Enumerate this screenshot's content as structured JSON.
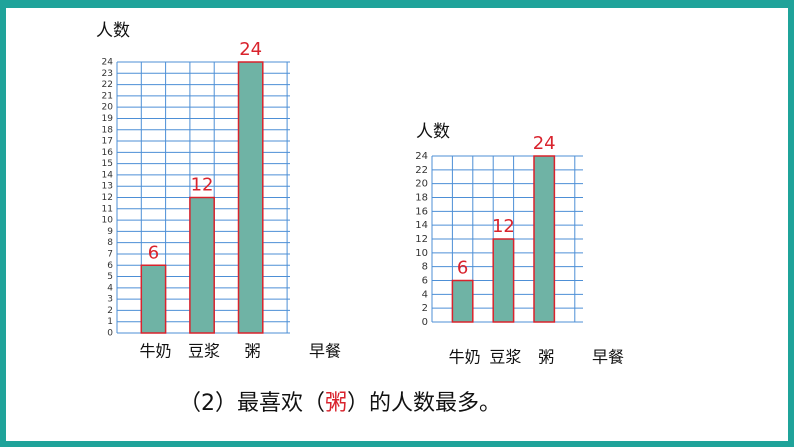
{
  "chart_data": [
    {
      "type": "bar",
      "y_label": "人数",
      "x_label": "早餐",
      "categories": [
        "牛奶",
        "豆浆",
        "粥"
      ],
      "values": [
        6,
        12,
        24
      ],
      "color": "#6fb3a5",
      "edge_color": "#d9232d",
      "label_color": "#d9232d",
      "grid_color": "#4d8fd6",
      "ylim": [
        0,
        24
      ],
      "yticks": [
        0,
        1,
        2,
        3,
        4,
        5,
        6,
        7,
        8,
        9,
        10,
        11,
        12,
        13,
        14,
        15,
        16,
        17,
        18,
        19,
        20,
        21,
        22,
        23,
        24
      ],
      "grid": true
    },
    {
      "type": "bar",
      "y_label": "人数",
      "x_label": "早餐",
      "categories": [
        "牛奶",
        "豆浆",
        "粥"
      ],
      "values": [
        6,
        12,
        24
      ],
      "color": "#6fb3a5",
      "edge_color": "#d9232d",
      "label_color": "#d9232d",
      "grid_color": "#4d8fd6",
      "ylim": [
        0,
        24
      ],
      "yticks": [
        0,
        2,
        4,
        6,
        8,
        10,
        12,
        14,
        16,
        18,
        20,
        22,
        24
      ],
      "grid": true
    }
  ],
  "note": {
    "before": "（2）最喜欢（",
    "answer": "粥",
    "after": "）的人数最多。"
  }
}
